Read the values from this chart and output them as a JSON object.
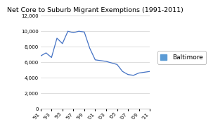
{
  "title": "Net Core to Suburb Migrant Exemptions (1991-2011)",
  "x_values": [
    1991,
    1992,
    1993,
    1994,
    1995,
    1996,
    1997,
    1998,
    1999,
    2000,
    2001,
    2002,
    2003,
    2004,
    2005,
    2006,
    2007,
    2008,
    2009,
    2010,
    2011
  ],
  "y_values": [
    6800,
    7200,
    6600,
    9100,
    8400,
    10000,
    9800,
    10000,
    9900,
    7800,
    6300,
    6200,
    6100,
    5900,
    5700,
    4800,
    4400,
    4300,
    4600,
    4700,
    4800
  ],
  "line_color": "#4472C4",
  "legend_label": "Baltimore",
  "legend_color": "#5B9BD5",
  "ylim": [
    0,
    12000
  ],
  "yticks": [
    0,
    2000,
    4000,
    6000,
    8000,
    10000,
    12000
  ],
  "xlim": [
    1991,
    2011
  ],
  "xticks": [
    1991,
    1993,
    1995,
    1997,
    1999,
    2001,
    2003,
    2005,
    2007,
    2009,
    2011
  ],
  "xtick_labels": [
    "'91",
    "'93",
    "'95",
    "'97",
    "'99",
    "'01",
    "'03",
    "'05",
    "'07",
    "'09",
    "'11"
  ],
  "background_color": "#ffffff",
  "grid_color": "#d0d0d0",
  "title_fontsize": 6.8,
  "tick_fontsize": 5.0,
  "legend_fontsize": 6.5
}
